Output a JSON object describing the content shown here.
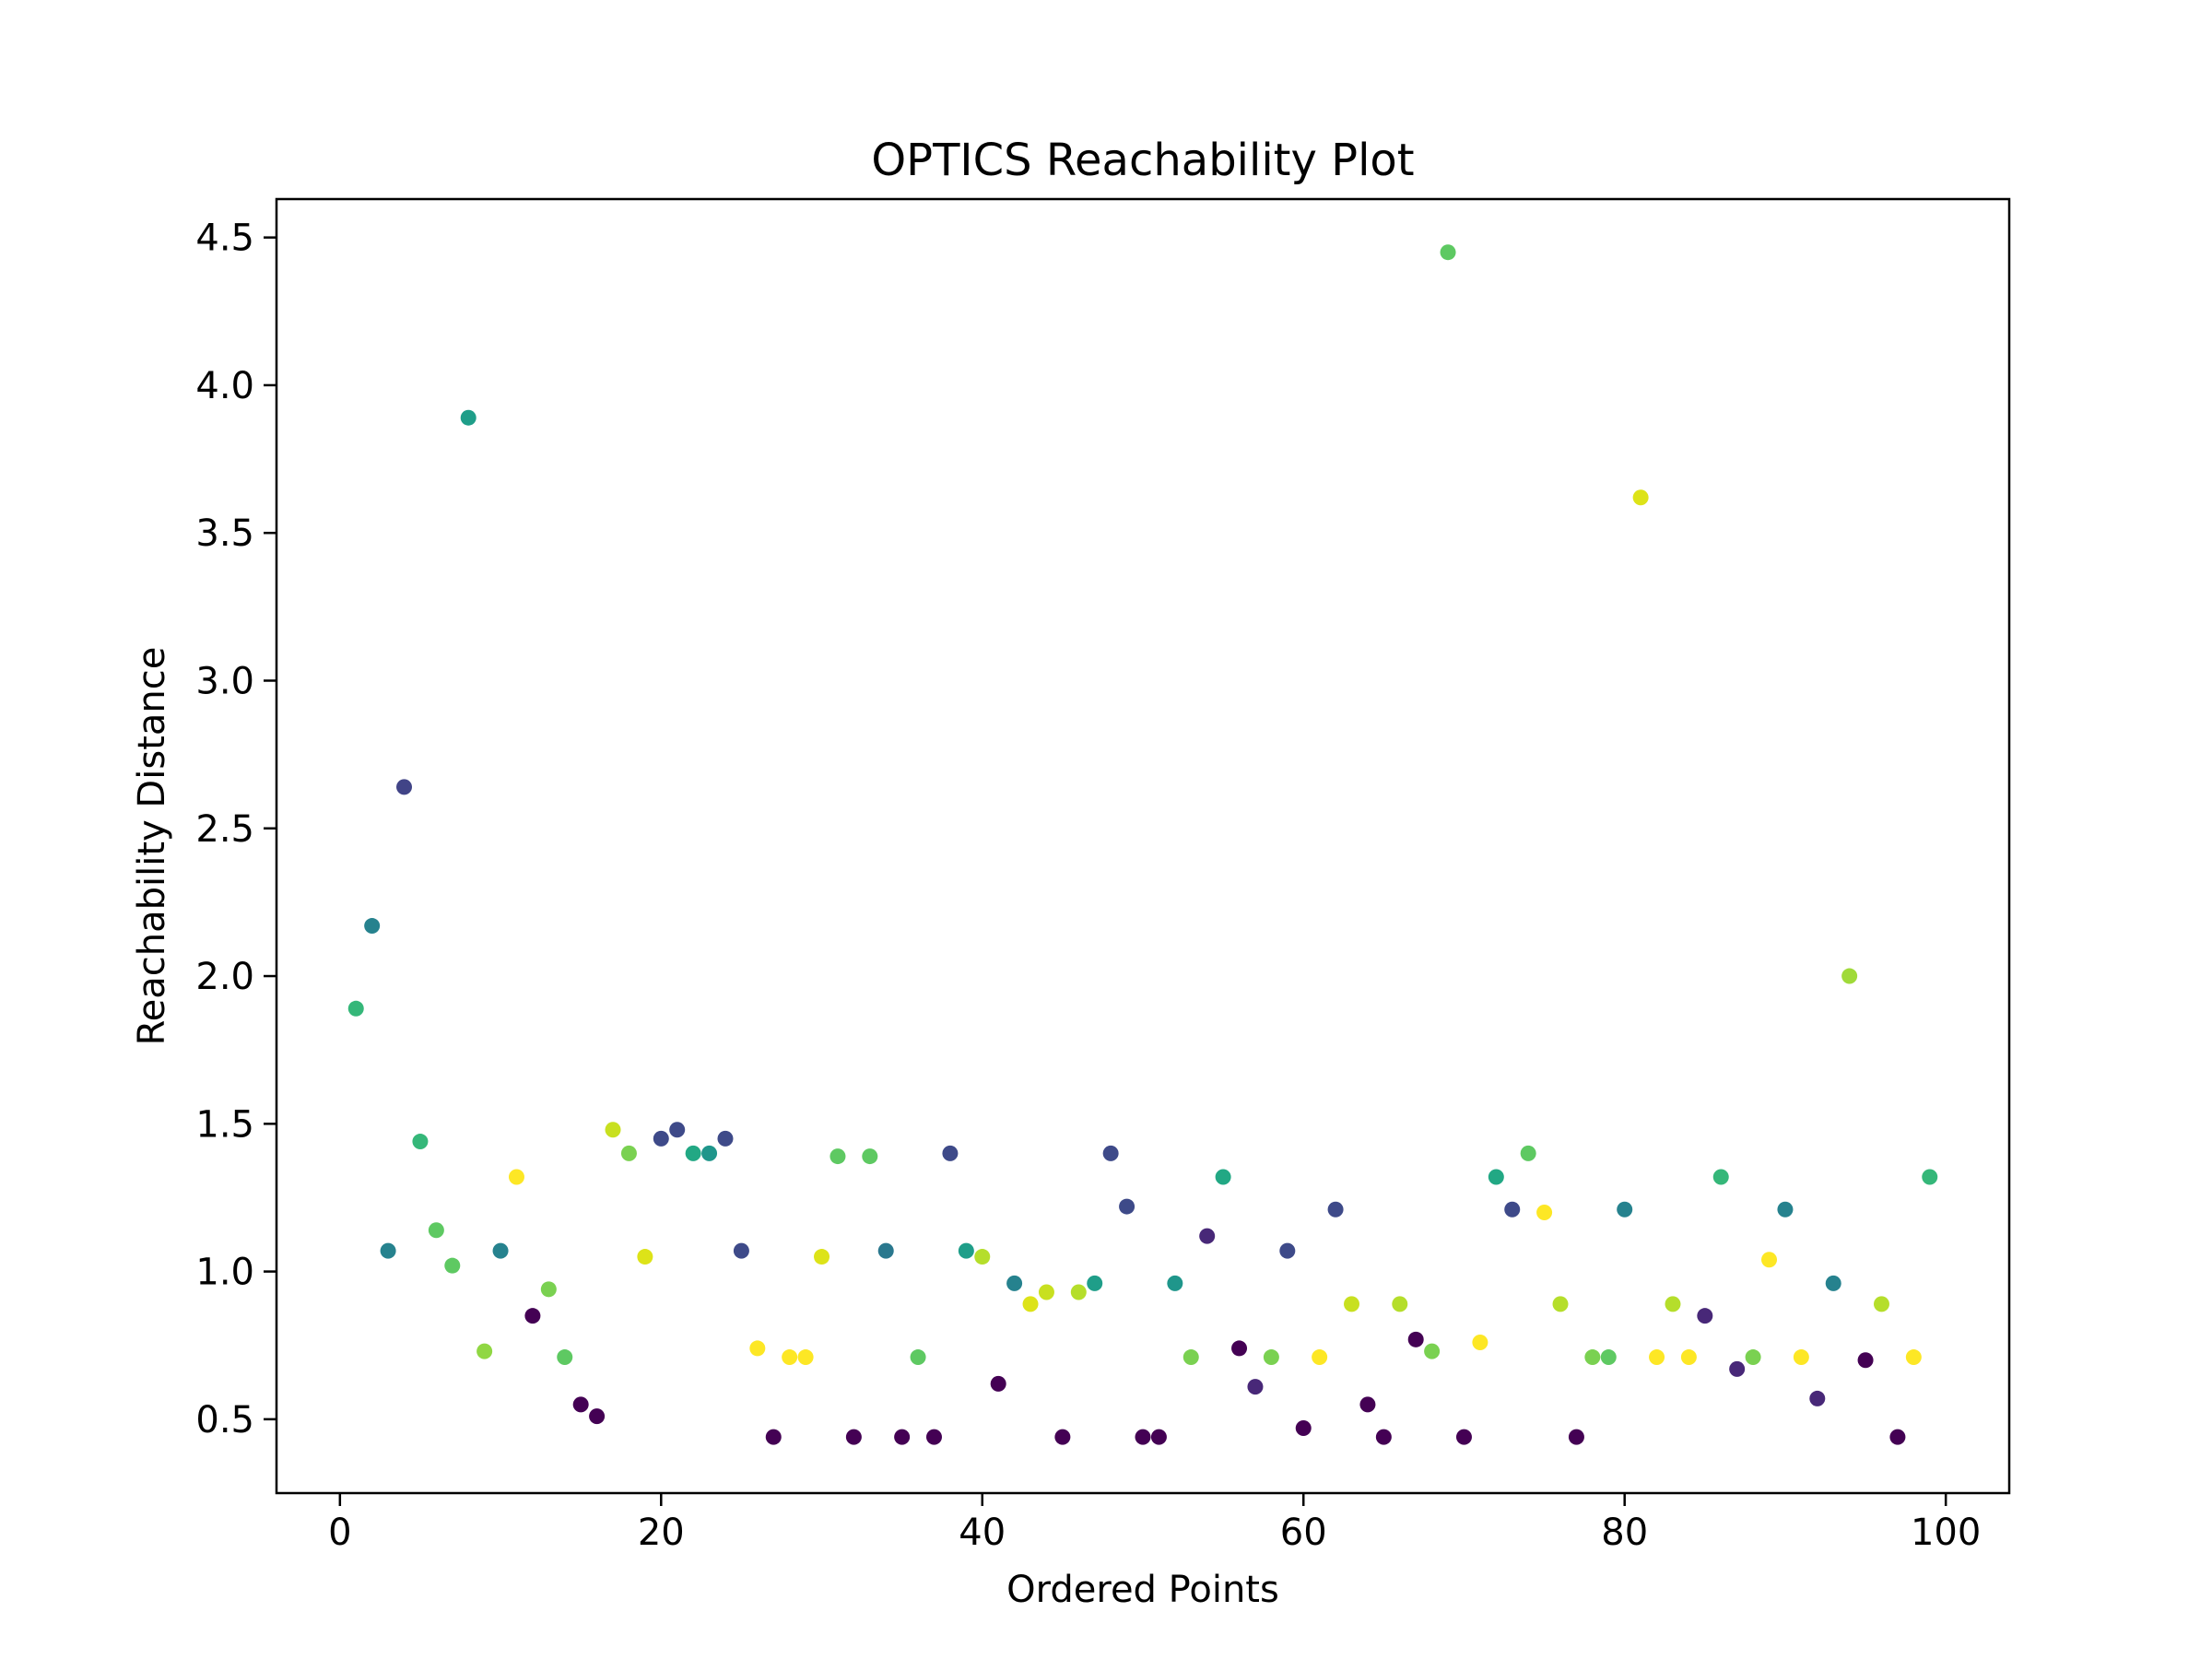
{
  "chart_data": {
    "type": "scatter",
    "title": "OPTICS Reachability Plot",
    "xlabel": "Ordered Points",
    "ylabel": "Reachability Distance",
    "xlim": [
      -3.95,
      103.95
    ],
    "ylim": [
      0.25,
      4.63
    ],
    "xticks": [
      0,
      20,
      40,
      60,
      80,
      100
    ],
    "yticks": [
      0.5,
      1.0,
      1.5,
      2.0,
      2.5,
      3.0,
      3.5,
      4.0,
      4.5
    ],
    "xtick_labels": [
      "0",
      "20",
      "40",
      "60",
      "80",
      "100"
    ],
    "ytick_labels": [
      "0.5",
      "1.0",
      "1.5",
      "2.0",
      "2.5",
      "3.0",
      "3.5",
      "4.0",
      "4.5"
    ],
    "grid": false,
    "colormap": "viridis",
    "points": [
      {
        "x": 1,
        "y": 1.89,
        "color": "#35b779"
      },
      {
        "x": 2,
        "y": 2.17,
        "color": "#26828e"
      },
      {
        "x": 3,
        "y": 1.07,
        "color": "#26828e"
      },
      {
        "x": 4,
        "y": 2.64,
        "color": "#414487"
      },
      {
        "x": 5,
        "y": 1.44,
        "color": "#35b779"
      },
      {
        "x": 6,
        "y": 1.14,
        "color": "#5ec962"
      },
      {
        "x": 7,
        "y": 1.02,
        "color": "#5ec962"
      },
      {
        "x": 8,
        "y": 3.89,
        "color": "#1f9e89"
      },
      {
        "x": 9,
        "y": 0.73,
        "color": "#90d743"
      },
      {
        "x": 10,
        "y": 1.07,
        "color": "#26828e"
      },
      {
        "x": 11,
        "y": 1.32,
        "color": "#fde725"
      },
      {
        "x": 12,
        "y": 0.85,
        "color": "#440154"
      },
      {
        "x": 13,
        "y": 0.94,
        "color": "#7ad151"
      },
      {
        "x": 14,
        "y": 0.71,
        "color": "#5ec962"
      },
      {
        "x": 15,
        "y": 0.55,
        "color": "#440154"
      },
      {
        "x": 16,
        "y": 0.51,
        "color": "#440154"
      },
      {
        "x": 17,
        "y": 1.48,
        "color": "#c8e020"
      },
      {
        "x": 18,
        "y": 1.4,
        "color": "#7ad151"
      },
      {
        "x": 19,
        "y": 1.05,
        "color": "#dde318"
      },
      {
        "x": 20,
        "y": 1.45,
        "color": "#3e4a89"
      },
      {
        "x": 21,
        "y": 1.48,
        "color": "#3e4a89"
      },
      {
        "x": 22,
        "y": 1.4,
        "color": "#22a884"
      },
      {
        "x": 23,
        "y": 1.4,
        "color": "#1f968b"
      },
      {
        "x": 24,
        "y": 1.45,
        "color": "#3e4a89"
      },
      {
        "x": 25,
        "y": 1.07,
        "color": "#3e4a89"
      },
      {
        "x": 26,
        "y": 0.74,
        "color": "#fde725"
      },
      {
        "x": 27,
        "y": 0.44,
        "color": "#440154"
      },
      {
        "x": 28,
        "y": 0.71,
        "color": "#fde725"
      },
      {
        "x": 29,
        "y": 0.71,
        "color": "#fde725"
      },
      {
        "x": 30,
        "y": 1.05,
        "color": "#dde318"
      },
      {
        "x": 31,
        "y": 1.39,
        "color": "#5ec962"
      },
      {
        "x": 32,
        "y": 0.44,
        "color": "#440154"
      },
      {
        "x": 33,
        "y": 1.39,
        "color": "#5ec962"
      },
      {
        "x": 34,
        "y": 1.07,
        "color": "#2a788e"
      },
      {
        "x": 35,
        "y": 0.44,
        "color": "#440154"
      },
      {
        "x": 36,
        "y": 0.71,
        "color": "#5ec962"
      },
      {
        "x": 37,
        "y": 0.44,
        "color": "#440154"
      },
      {
        "x": 38,
        "y": 1.4,
        "color": "#3e4a89"
      },
      {
        "x": 39,
        "y": 1.07,
        "color": "#1f9e89"
      },
      {
        "x": 40,
        "y": 1.05,
        "color": "#b5de2b"
      },
      {
        "x": 41,
        "y": 0.62,
        "color": "#440154"
      },
      {
        "x": 42,
        "y": 0.96,
        "color": "#26828e"
      },
      {
        "x": 43,
        "y": 0.89,
        "color": "#dde318"
      },
      {
        "x": 44,
        "y": 0.93,
        "color": "#c8e020"
      },
      {
        "x": 45,
        "y": 0.44,
        "color": "#440154"
      },
      {
        "x": 46,
        "y": 0.93,
        "color": "#b5de2b"
      },
      {
        "x": 47,
        "y": 0.96,
        "color": "#1f9e89"
      },
      {
        "x": 48,
        "y": 1.4,
        "color": "#3e4a89"
      },
      {
        "x": 49,
        "y": 1.22,
        "color": "#3e4a89"
      },
      {
        "x": 50,
        "y": 0.44,
        "color": "#440154"
      },
      {
        "x": 51,
        "y": 0.44,
        "color": "#440154"
      },
      {
        "x": 52,
        "y": 0.96,
        "color": "#1f968b"
      },
      {
        "x": 53,
        "y": 0.71,
        "color": "#7ad151"
      },
      {
        "x": 54,
        "y": 1.12,
        "color": "#482878"
      },
      {
        "x": 55,
        "y": 1.32,
        "color": "#22a884"
      },
      {
        "x": 56,
        "y": 0.74,
        "color": "#440154"
      },
      {
        "x": 57,
        "y": 0.61,
        "color": "#482878"
      },
      {
        "x": 58,
        "y": 0.71,
        "color": "#7ad151"
      },
      {
        "x": 59,
        "y": 1.07,
        "color": "#3e4a89"
      },
      {
        "x": 60,
        "y": 0.47,
        "color": "#440154"
      },
      {
        "x": 61,
        "y": 0.71,
        "color": "#fde725"
      },
      {
        "x": 62,
        "y": 1.21,
        "color": "#3e4a89"
      },
      {
        "x": 63,
        "y": 0.89,
        "color": "#c8e020"
      },
      {
        "x": 64,
        "y": 0.55,
        "color": "#440154"
      },
      {
        "x": 65,
        "y": 0.44,
        "color": "#440154"
      },
      {
        "x": 66,
        "y": 0.89,
        "color": "#b5de2b"
      },
      {
        "x": 67,
        "y": 0.77,
        "color": "#440154"
      },
      {
        "x": 68,
        "y": 0.73,
        "color": "#7ad151"
      },
      {
        "x": 69,
        "y": 4.45,
        "color": "#5ec962"
      },
      {
        "x": 70,
        "y": 0.44,
        "color": "#440154"
      },
      {
        "x": 71,
        "y": 0.76,
        "color": "#fde725"
      },
      {
        "x": 72,
        "y": 1.32,
        "color": "#22a884"
      },
      {
        "x": 73,
        "y": 1.21,
        "color": "#3e4a89"
      },
      {
        "x": 74,
        "y": 1.4,
        "color": "#5ec962"
      },
      {
        "x": 75,
        "y": 1.2,
        "color": "#fde725"
      },
      {
        "x": 76,
        "y": 0.89,
        "color": "#b5de2b"
      },
      {
        "x": 77,
        "y": 0.44,
        "color": "#440154"
      },
      {
        "x": 78,
        "y": 0.71,
        "color": "#7ad151"
      },
      {
        "x": 79,
        "y": 0.71,
        "color": "#5ec962"
      },
      {
        "x": 80,
        "y": 1.21,
        "color": "#26828e"
      },
      {
        "x": 81,
        "y": 3.62,
        "color": "#dde318"
      },
      {
        "x": 82,
        "y": 0.71,
        "color": "#fde725"
      },
      {
        "x": 83,
        "y": 0.89,
        "color": "#b5de2b"
      },
      {
        "x": 84,
        "y": 0.71,
        "color": "#fde725"
      },
      {
        "x": 85,
        "y": 0.85,
        "color": "#482878"
      },
      {
        "x": 86,
        "y": 1.32,
        "color": "#35b779"
      },
      {
        "x": 87,
        "y": 0.67,
        "color": "#482878"
      },
      {
        "x": 88,
        "y": 0.71,
        "color": "#7ad151"
      },
      {
        "x": 89,
        "y": 1.04,
        "color": "#fde725"
      },
      {
        "x": 90,
        "y": 1.21,
        "color": "#26828e"
      },
      {
        "x": 91,
        "y": 0.71,
        "color": "#fde725"
      },
      {
        "x": 92,
        "y": 0.57,
        "color": "#482878"
      },
      {
        "x": 93,
        "y": 0.96,
        "color": "#26828e"
      },
      {
        "x": 94,
        "y": 2.0,
        "color": "#a0da39"
      },
      {
        "x": 95,
        "y": 0.7,
        "color": "#440154"
      },
      {
        "x": 96,
        "y": 0.89,
        "color": "#b5de2b"
      },
      {
        "x": 97,
        "y": 0.44,
        "color": "#440154"
      },
      {
        "x": 98,
        "y": 0.71,
        "color": "#fde725"
      },
      {
        "x": 99,
        "y": 1.32,
        "color": "#35b779"
      }
    ]
  }
}
